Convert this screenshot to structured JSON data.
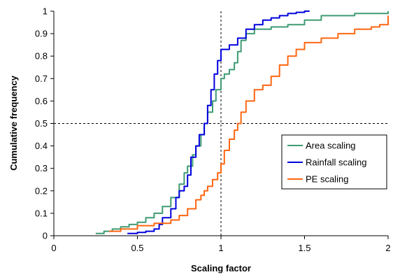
{
  "chart_data": {
    "type": "line",
    "xlabel": "Scaling factor",
    "ylabel": "Cumulative frequency",
    "xlim": [
      0,
      2
    ],
    "ylim": [
      0,
      1
    ],
    "x_ticks": [
      0,
      0.5,
      1,
      1.5,
      2
    ],
    "x_tick_labels": [
      "0",
      "0.5",
      "1",
      "1.5",
      "2"
    ],
    "y_ticks": [
      0,
      0.1,
      0.2,
      0.3,
      0.4,
      0.5,
      0.6,
      0.7,
      0.8,
      0.9,
      1
    ],
    "y_tick_labels": [
      "0",
      "0.1",
      "0.2",
      "0.3",
      "0.4",
      "0.5",
      "0.6",
      "0.7",
      "0.8",
      "0.9",
      "1"
    ],
    "grid": false,
    "reference_lines": {
      "x": 1,
      "y": 0.5,
      "style": "dashed"
    },
    "legend_position": "right",
    "series": [
      {
        "name": "Area scaling",
        "color": "#3e9b73",
        "x": [
          0.25,
          0.3,
          0.35,
          0.4,
          0.45,
          0.5,
          0.55,
          0.6,
          0.65,
          0.7,
          0.75,
          0.78,
          0.8,
          0.83,
          0.85,
          0.88,
          0.9,
          0.92,
          0.95,
          0.97,
          1.0,
          1.02,
          1.05,
          1.08,
          1.1,
          1.12,
          1.15,
          1.2,
          1.3,
          1.4,
          1.5,
          1.6,
          1.8,
          2.0
        ],
        "y": [
          0.01,
          0.02,
          0.03,
          0.04,
          0.05,
          0.06,
          0.08,
          0.1,
          0.13,
          0.17,
          0.23,
          0.28,
          0.31,
          0.36,
          0.4,
          0.45,
          0.5,
          0.55,
          0.6,
          0.65,
          0.7,
          0.72,
          0.74,
          0.77,
          0.82,
          0.87,
          0.9,
          0.92,
          0.93,
          0.94,
          0.96,
          0.98,
          0.99,
          1.0
        ]
      },
      {
        "name": "Rainfall scaling",
        "color": "#0000dd",
        "x": [
          0.44,
          0.5,
          0.55,
          0.6,
          0.63,
          0.65,
          0.7,
          0.73,
          0.75,
          0.78,
          0.8,
          0.82,
          0.85,
          0.87,
          0.9,
          0.92,
          0.94,
          0.96,
          0.98,
          1.0,
          1.05,
          1.1,
          1.15,
          1.2,
          1.25,
          1.3,
          1.35,
          1.4,
          1.45,
          1.5,
          1.53
        ],
        "y": [
          0.01,
          0.015,
          0.02,
          0.03,
          0.05,
          0.08,
          0.12,
          0.17,
          0.2,
          0.22,
          0.27,
          0.35,
          0.4,
          0.45,
          0.5,
          0.58,
          0.65,
          0.72,
          0.78,
          0.83,
          0.85,
          0.88,
          0.92,
          0.94,
          0.96,
          0.97,
          0.98,
          0.99,
          0.995,
          1.0,
          1.0
        ]
      },
      {
        "name": "PE scaling",
        "color": "#ff6611",
        "x": [
          0.33,
          0.4,
          0.5,
          0.6,
          0.7,
          0.75,
          0.8,
          0.85,
          0.88,
          0.9,
          0.92,
          0.95,
          0.98,
          1.0,
          1.02,
          1.05,
          1.08,
          1.1,
          1.12,
          1.15,
          1.2,
          1.25,
          1.3,
          1.35,
          1.4,
          1.45,
          1.5,
          1.6,
          1.7,
          1.8,
          1.9,
          1.95,
          2.0
        ],
        "y": [
          0.02,
          0.03,
          0.045,
          0.055,
          0.07,
          0.09,
          0.12,
          0.16,
          0.18,
          0.2,
          0.22,
          0.25,
          0.28,
          0.32,
          0.38,
          0.43,
          0.47,
          0.5,
          0.55,
          0.6,
          0.65,
          0.67,
          0.71,
          0.76,
          0.8,
          0.83,
          0.86,
          0.88,
          0.9,
          0.92,
          0.93,
          0.94,
          0.98
        ]
      }
    ]
  }
}
